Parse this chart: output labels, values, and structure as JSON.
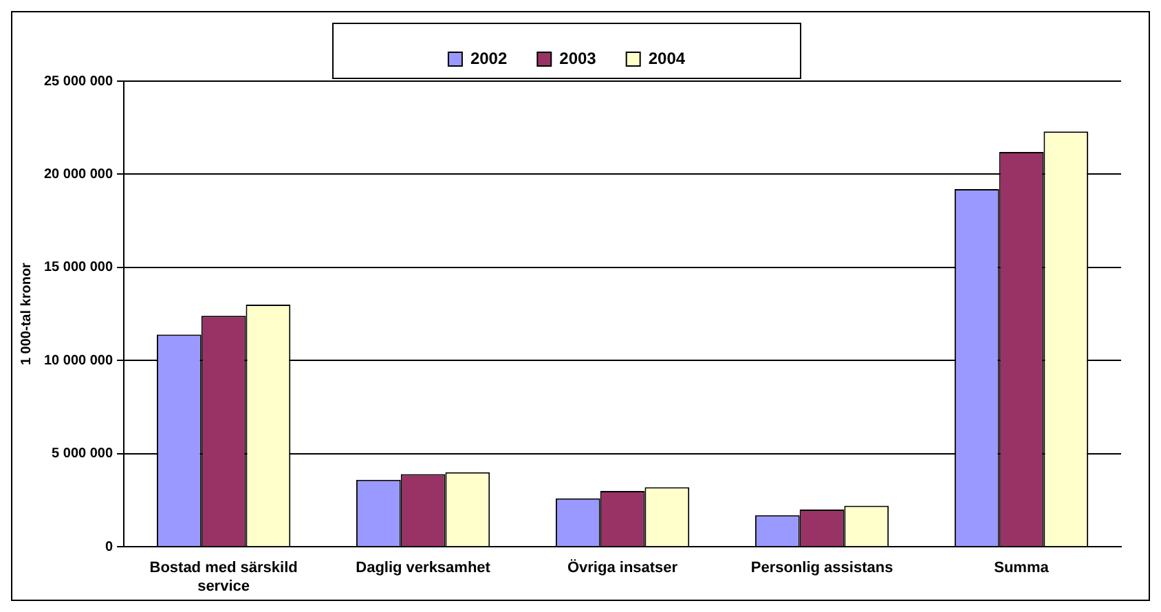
{
  "chart_data": {
    "type": "bar",
    "ylabel": "1 000-tal kronor",
    "categories": [
      "Bostad med särskild service",
      "Daglig verksamhet",
      "Övriga insatser",
      "Personlig assistans",
      "Summa"
    ],
    "series": [
      {
        "name": "2002",
        "color": "#9999ff",
        "values": [
          11400000,
          3600000,
          2600000,
          1700000,
          19200000
        ]
      },
      {
        "name": "2003",
        "color": "#993366",
        "values": [
          12400000,
          3900000,
          3000000,
          2000000,
          21200000
        ]
      },
      {
        "name": "2004",
        "color": "#ffffcc",
        "values": [
          13000000,
          4000000,
          3200000,
          2200000,
          22300000
        ]
      }
    ],
    "ylim": [
      0,
      25000000
    ],
    "yticks": [
      0,
      {
        "value": 5000000,
        "label": "5 000 000"
      },
      {
        "value": 10000000,
        "label": "10 000 000"
      },
      {
        "value": 15000000,
        "label": "15 000 000"
      },
      {
        "value": 20000000,
        "label": "20 000 000"
      },
      {
        "value": 25000000,
        "label": "25 000 000"
      }
    ],
    "grid": "y",
    "legend": "top"
  }
}
